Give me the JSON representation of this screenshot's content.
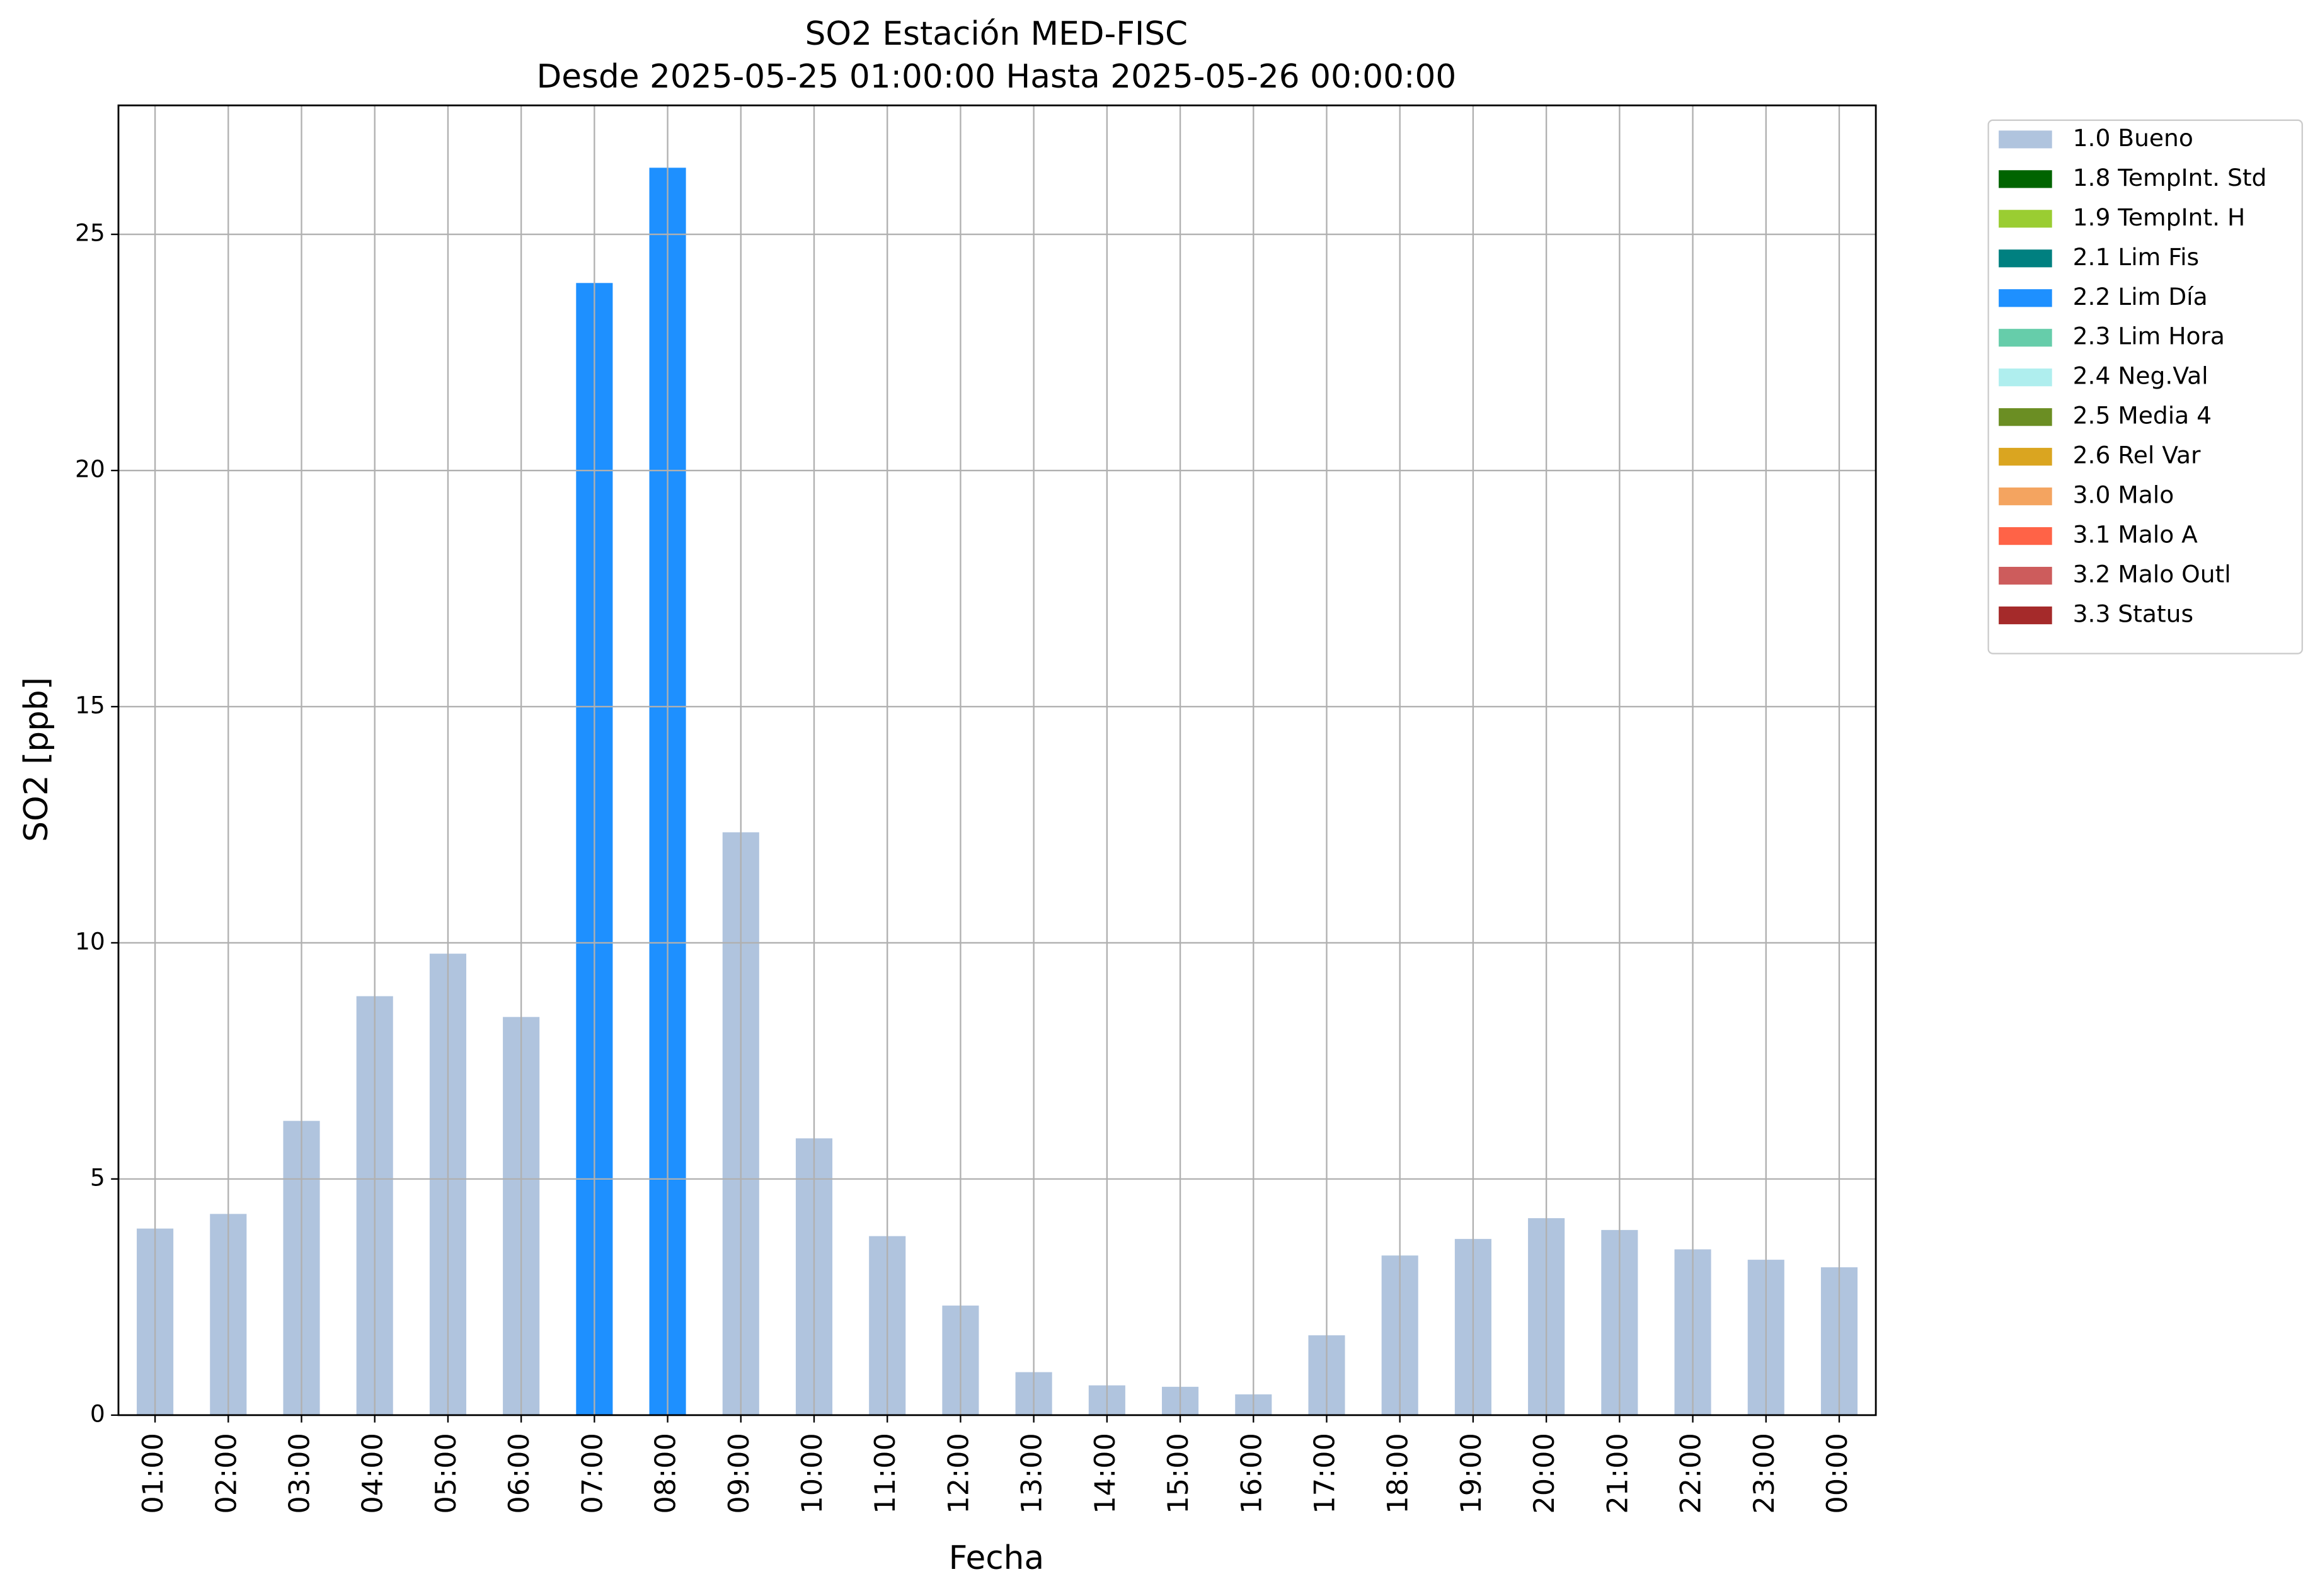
{
  "chart_data": {
    "type": "bar",
    "title": "SO2 Estación MED-FISC",
    "subtitle": "Desde 2025-05-25 01:00:00 Hasta 2025-05-26 00:00:00",
    "x_label": "Fecha",
    "y_label": "SO2 [ppb]",
    "categories": [
      "01:00",
      "02:00",
      "03:00",
      "04:00",
      "05:00",
      "06:00",
      "07:00",
      "08:00",
      "09:00",
      "10:00",
      "11:00",
      "12:00",
      "13:00",
      "14:00",
      "15:00",
      "16:00",
      "17:00",
      "18:00",
      "19:00",
      "20:00",
      "21:00",
      "22:00",
      "23:00",
      "00:00"
    ],
    "series": [
      {
        "name": "1.0 Bueno",
        "color": "#b0c4de",
        "values": [
          3.95,
          4.26,
          6.23,
          8.87,
          9.77,
          8.43,
          null,
          null,
          12.34,
          5.86,
          3.79,
          2.32,
          0.91,
          0.63,
          0.6,
          0.44,
          1.69,
          3.38,
          3.73,
          4.17,
          3.92,
          3.51,
          3.29,
          3.13
        ]
      },
      {
        "name": "1.8 TempInt. Std",
        "color": "#006400",
        "values": [
          null,
          null,
          null,
          null,
          null,
          null,
          null,
          null,
          null,
          null,
          null,
          null,
          null,
          null,
          null,
          null,
          null,
          null,
          null,
          null,
          null,
          null,
          null,
          null
        ]
      },
      {
        "name": "1.9 TempInt. H",
        "color": "#9acd32",
        "values": [
          null,
          null,
          null,
          null,
          null,
          null,
          null,
          null,
          null,
          null,
          null,
          null,
          null,
          null,
          null,
          null,
          null,
          null,
          null,
          null,
          null,
          null,
          null,
          null
        ]
      },
      {
        "name": "2.1 Lim Fis",
        "color": "#008080",
        "values": [
          null,
          null,
          null,
          null,
          null,
          null,
          null,
          null,
          null,
          null,
          null,
          null,
          null,
          null,
          null,
          null,
          null,
          null,
          null,
          null,
          null,
          null,
          null,
          null
        ]
      },
      {
        "name": "2.2 Lim Día",
        "color": "#1e90ff",
        "values": [
          null,
          null,
          null,
          null,
          null,
          null,
          23.97,
          26.41,
          null,
          null,
          null,
          null,
          null,
          null,
          null,
          null,
          null,
          null,
          null,
          null,
          null,
          null,
          null,
          null
        ]
      },
      {
        "name": "2.3 Lim Hora",
        "color": "#66cdaa",
        "values": [
          null,
          null,
          null,
          null,
          null,
          null,
          null,
          null,
          null,
          null,
          null,
          null,
          null,
          null,
          null,
          null,
          null,
          null,
          null,
          null,
          null,
          null,
          null,
          null
        ]
      },
      {
        "name": "2.4 Neg.Val",
        "color": "#afeeee",
        "values": [
          null,
          null,
          null,
          null,
          null,
          null,
          null,
          null,
          null,
          null,
          null,
          null,
          null,
          null,
          null,
          null,
          null,
          null,
          null,
          null,
          null,
          null,
          null,
          null
        ]
      },
      {
        "name": "2.5 Media 4",
        "color": "#6b8e23",
        "values": [
          null,
          null,
          null,
          null,
          null,
          null,
          null,
          null,
          null,
          null,
          null,
          null,
          null,
          null,
          null,
          null,
          null,
          null,
          null,
          null,
          null,
          null,
          null,
          null
        ]
      },
      {
        "name": "2.6 Rel Var",
        "color": "#daa520",
        "values": [
          null,
          null,
          null,
          null,
          null,
          null,
          null,
          null,
          null,
          null,
          null,
          null,
          null,
          null,
          null,
          null,
          null,
          null,
          null,
          null,
          null,
          null,
          null,
          null
        ]
      },
      {
        "name": "3.0 Malo",
        "color": "#f4a460",
        "values": [
          null,
          null,
          null,
          null,
          null,
          null,
          null,
          null,
          null,
          null,
          null,
          null,
          null,
          null,
          null,
          null,
          null,
          null,
          null,
          null,
          null,
          null,
          null,
          null
        ]
      },
      {
        "name": "3.1 Malo A",
        "color": "#ff6347",
        "values": [
          null,
          null,
          null,
          null,
          null,
          null,
          null,
          null,
          null,
          null,
          null,
          null,
          null,
          null,
          null,
          null,
          null,
          null,
          null,
          null,
          null,
          null,
          null,
          null
        ]
      },
      {
        "name": "3.2 Malo Outl",
        "color": "#cd5c5c",
        "values": [
          null,
          null,
          null,
          null,
          null,
          null,
          null,
          null,
          null,
          null,
          null,
          null,
          null,
          null,
          null,
          null,
          null,
          null,
          null,
          null,
          null,
          null,
          null,
          null
        ]
      },
      {
        "name": "3.3 Status",
        "color": "#a52a2a",
        "values": [
          null,
          null,
          null,
          null,
          null,
          null,
          null,
          null,
          null,
          null,
          null,
          null,
          null,
          null,
          null,
          null,
          null,
          null,
          null,
          null,
          null,
          null,
          null,
          null
        ]
      }
    ],
    "ylim": [
      0,
      27.73
    ],
    "yticks": [
      0,
      5,
      10,
      15,
      20,
      25
    ],
    "grid": true,
    "legend": "outside-upper-right"
  }
}
